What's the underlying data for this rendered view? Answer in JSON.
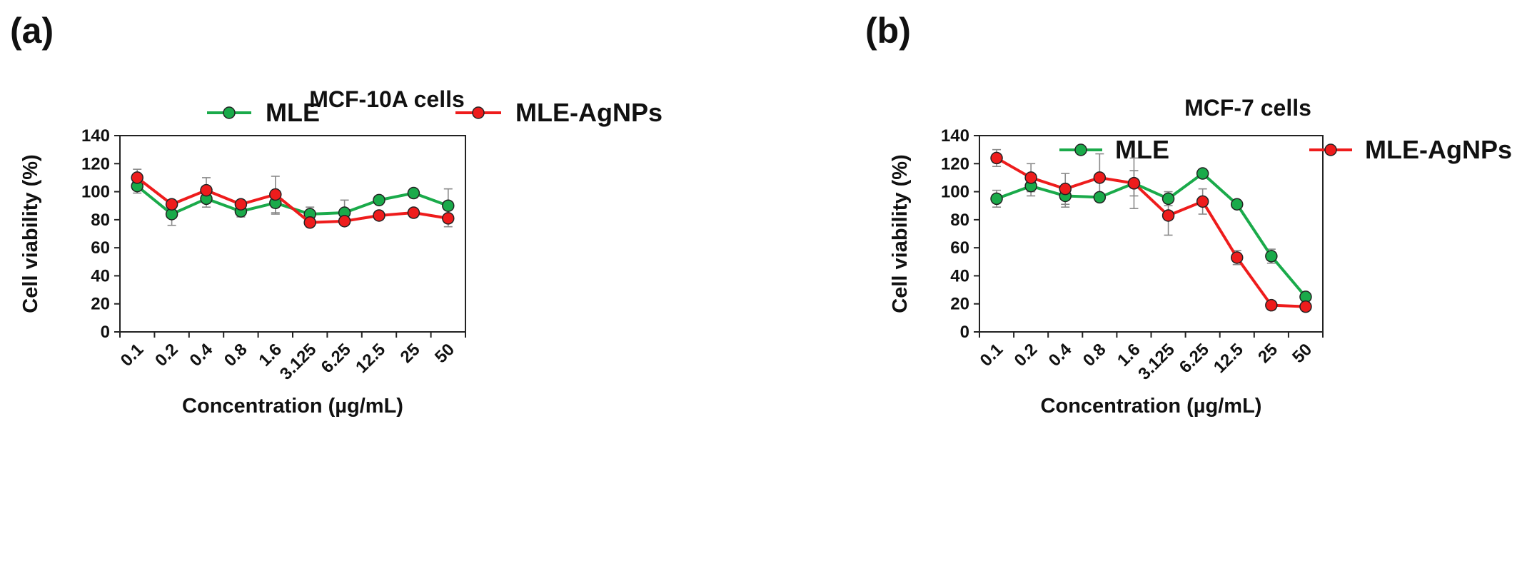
{
  "chart_data": [
    {
      "type": "line",
      "panel_label": "(a)",
      "title": "MCF-10A cells",
      "xlabel": "Concentration (µg/mL)",
      "ylabel": "Cell viability (%)",
      "categories": [
        "0.1",
        "0.2",
        "0.4",
        "0.8",
        "1.6",
        "3.125",
        "6.25",
        "12.5",
        "25",
        "50"
      ],
      "ylim": [
        0,
        140
      ],
      "yticks": [
        "0",
        "20",
        "40",
        "60",
        "80",
        "100",
        "120",
        "140"
      ],
      "legend_position": "top",
      "series": [
        {
          "name": "MLE",
          "color": "#1aaa4a",
          "values": [
            104,
            84,
            95,
            86,
            92,
            84,
            85,
            94,
            99,
            90
          ],
          "errors": [
            5,
            8,
            6,
            4,
            8,
            5,
            9,
            2,
            3,
            12
          ]
        },
        {
          "name": "MLE-AgNPs",
          "color": "#ee1c1c",
          "values": [
            110,
            91,
            101,
            91,
            98,
            78,
            79,
            83,
            85,
            81
          ],
          "errors": [
            6,
            3,
            9,
            3,
            13,
            3,
            3,
            3,
            3,
            6
          ]
        }
      ]
    },
    {
      "type": "line",
      "panel_label": "(b)",
      "title": "MCF-7 cells",
      "xlabel": "Concentration (µg/mL)",
      "ylabel": "Cell viability (%)",
      "categories": [
        "0.1",
        "0.2",
        "0.4",
        "0.8",
        "1.6",
        "3.125",
        "6.25",
        "12.5",
        "25",
        "50"
      ],
      "ylim": [
        0,
        140
      ],
      "yticks": [
        "0",
        "20",
        "40",
        "60",
        "80",
        "100",
        "120",
        "140"
      ],
      "legend_position": "top",
      "series": [
        {
          "name": "MLE",
          "color": "#1aaa4a",
          "values": [
            95,
            104,
            97,
            96,
            106,
            95,
            113,
            91,
            54,
            25
          ],
          "errors": [
            6,
            7,
            8,
            3,
            9,
            5,
            2,
            2,
            5,
            2
          ]
        },
        {
          "name": "MLE-AgNPs",
          "color": "#ee1c1c",
          "values": [
            124,
            110,
            102,
            110,
            106,
            83,
            93,
            53,
            19,
            18
          ],
          "errors": [
            6,
            10,
            11,
            17,
            18,
            14,
            9,
            5,
            3,
            2
          ]
        }
      ]
    }
  ]
}
